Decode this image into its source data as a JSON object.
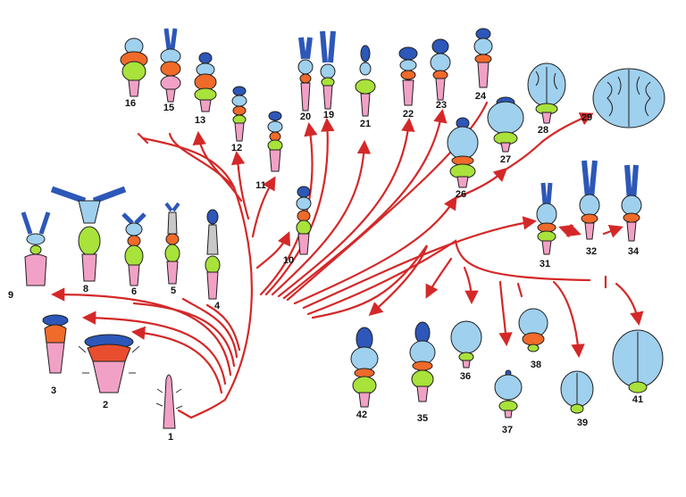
{
  "colors": {
    "branch": "#d42828",
    "forebrain": "#2d57b8",
    "cerebrum": "#9fd0ee",
    "optic": "#f06a2a",
    "midbrain": "#ee8fb3",
    "cerebellum": "#a8e23a",
    "hindbrain": "#f2a1c6",
    "outline": "#1f1f1f"
  },
  "specimens": [
    {
      "label": "1"
    },
    {
      "label": "2"
    },
    {
      "label": "3"
    },
    {
      "label": "4"
    },
    {
      "label": "5"
    },
    {
      "label": "6"
    },
    {
      "label": "8"
    },
    {
      "label": "9"
    },
    {
      "label": "10"
    },
    {
      "label": "11"
    },
    {
      "label": "12"
    },
    {
      "label": "13"
    },
    {
      "label": "15"
    },
    {
      "label": "16"
    },
    {
      "label": "19"
    },
    {
      "label": "20"
    },
    {
      "label": "21"
    },
    {
      "label": "22"
    },
    {
      "label": "23"
    },
    {
      "label": "24"
    },
    {
      "label": "26"
    },
    {
      "label": "27"
    },
    {
      "label": "28"
    },
    {
      "label": "29"
    },
    {
      "label": "31"
    },
    {
      "label": "32"
    },
    {
      "label": "34"
    },
    {
      "label": "35"
    },
    {
      "label": "36"
    },
    {
      "label": "37"
    },
    {
      "label": "38"
    },
    {
      "label": "39"
    },
    {
      "label": "41"
    },
    {
      "label": "42"
    }
  ]
}
